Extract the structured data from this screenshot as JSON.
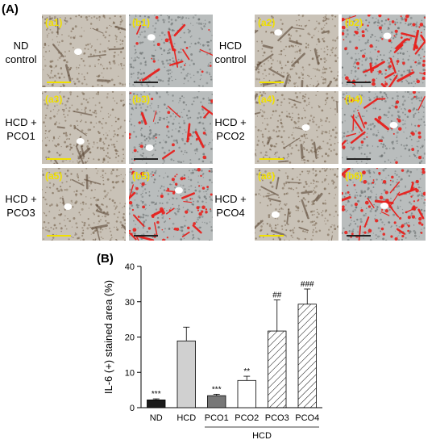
{
  "panel_a_label": "(A)",
  "panel_b_label": "(B)",
  "rows": [
    {
      "label_lines": [
        "ND",
        "control"
      ],
      "left_tag": "(a1)",
      "right_tag": "(b1)",
      "stain": 0.06
    },
    {
      "label_lines": [
        "HCD",
        "control"
      ],
      "left_tag": "(a2)",
      "right_tag": "(b2)",
      "stain": 0.34
    },
    {
      "label_lines": [
        "HCD +",
        "PCO1"
      ],
      "left_tag": "(a3)",
      "right_tag": "(b3)",
      "stain": 0.08
    },
    {
      "label_lines": [
        "HCD +",
        "PCO2"
      ],
      "left_tag": "(a4)",
      "right_tag": "(b4)",
      "stain": 0.14
    },
    {
      "label_lines": [
        "HCD +",
        "PCO3"
      ],
      "left_tag": "(a5)",
      "right_tag": "(b5)",
      "stain": 0.26
    },
    {
      "label_lines": [
        "HCD +",
        "PCO4"
      ],
      "left_tag": "(a6)",
      "right_tag": "(b6)",
      "stain": 0.32
    }
  ],
  "colors": {
    "tissue_light": "#c9c2b7",
    "tissue_dark": "#6e5a44",
    "stain_red": "#e8201c",
    "tag_yellow": "#f0e000"
  },
  "chart_data": {
    "type": "bar",
    "categories": [
      "ND",
      "HCD",
      "PCO1",
      "PCO2",
      "PCO3",
      "PCO4"
    ],
    "values": [
      2.2,
      18.9,
      3.4,
      7.7,
      21.7,
      29.3
    ],
    "errors": [
      0.3,
      3.9,
      0.4,
      1.2,
      8.8,
      4.3
    ],
    "significance": [
      "***",
      "",
      "***",
      "**",
      "##",
      "###"
    ],
    "fills": [
      "solid-dark",
      "solid-light",
      "solid-mid",
      "white",
      "hatch",
      "hatch"
    ],
    "bar_colors": [
      "#1a1a1a",
      "#d0d0d0",
      "#777777",
      "#ffffff",
      "#ffffff",
      "#ffffff"
    ],
    "ylabel": "IL-6 (+) stained area (%)",
    "ylim": [
      0,
      40
    ],
    "yticks": [
      0,
      10,
      20,
      30,
      40
    ],
    "group_label": "HCD",
    "group_members": [
      "PCO1",
      "PCO2",
      "PCO3",
      "PCO4"
    ]
  }
}
